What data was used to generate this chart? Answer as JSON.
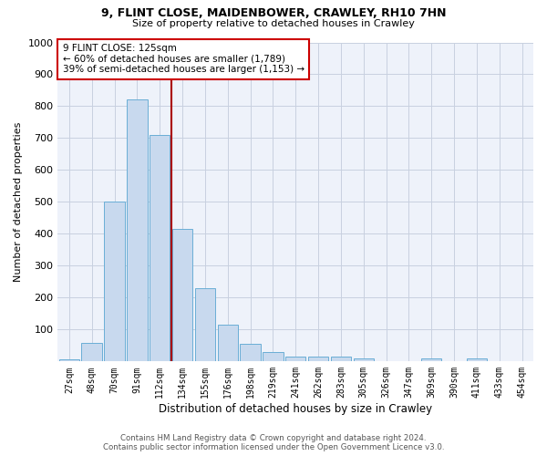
{
  "title_line1": "9, FLINT CLOSE, MAIDENBOWER, CRAWLEY, RH10 7HN",
  "title_line2": "Size of property relative to detached houses in Crawley",
  "xlabel": "Distribution of detached houses by size in Crawley",
  "ylabel": "Number of detached properties",
  "bar_labels": [
    "27sqm",
    "48sqm",
    "70sqm",
    "91sqm",
    "112sqm",
    "134sqm",
    "155sqm",
    "176sqm",
    "198sqm",
    "219sqm",
    "241sqm",
    "262sqm",
    "283sqm",
    "305sqm",
    "326sqm",
    "347sqm",
    "369sqm",
    "390sqm",
    "411sqm",
    "433sqm",
    "454sqm"
  ],
  "bar_values": [
    8,
    57,
    500,
    820,
    710,
    415,
    230,
    115,
    55,
    30,
    15,
    15,
    15,
    10,
    0,
    0,
    10,
    0,
    10,
    0,
    0
  ],
  "bar_color": "#c8d9ee",
  "bar_edge_color": "#6aaed6",
  "ylim": [
    0,
    1000
  ],
  "yticks": [
    0,
    100,
    200,
    300,
    400,
    500,
    600,
    700,
    800,
    900,
    1000
  ],
  "vline_x": 4.5,
  "vline_color": "#aa0000",
  "annotation_text": "9 FLINT CLOSE: 125sqm\n← 60% of detached houses are smaller (1,789)\n39% of semi-detached houses are larger (1,153) →",
  "annotation_box_color": "#ffffff",
  "annotation_box_edge_color": "#cc0000",
  "footer_line1": "Contains HM Land Registry data © Crown copyright and database right 2024.",
  "footer_line2": "Contains public sector information licensed under the Open Government Licence v3.0.",
  "background_color": "#eef2fa",
  "grid_color": "#c8d0e0"
}
